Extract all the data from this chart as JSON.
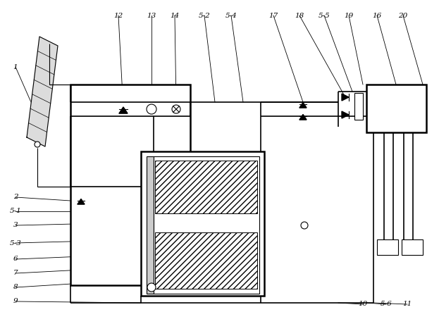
{
  "bg_color": "#ffffff",
  "line_color": "#000000",
  "fig_width": 6.23,
  "fig_height": 4.43,
  "dpi": 100
}
